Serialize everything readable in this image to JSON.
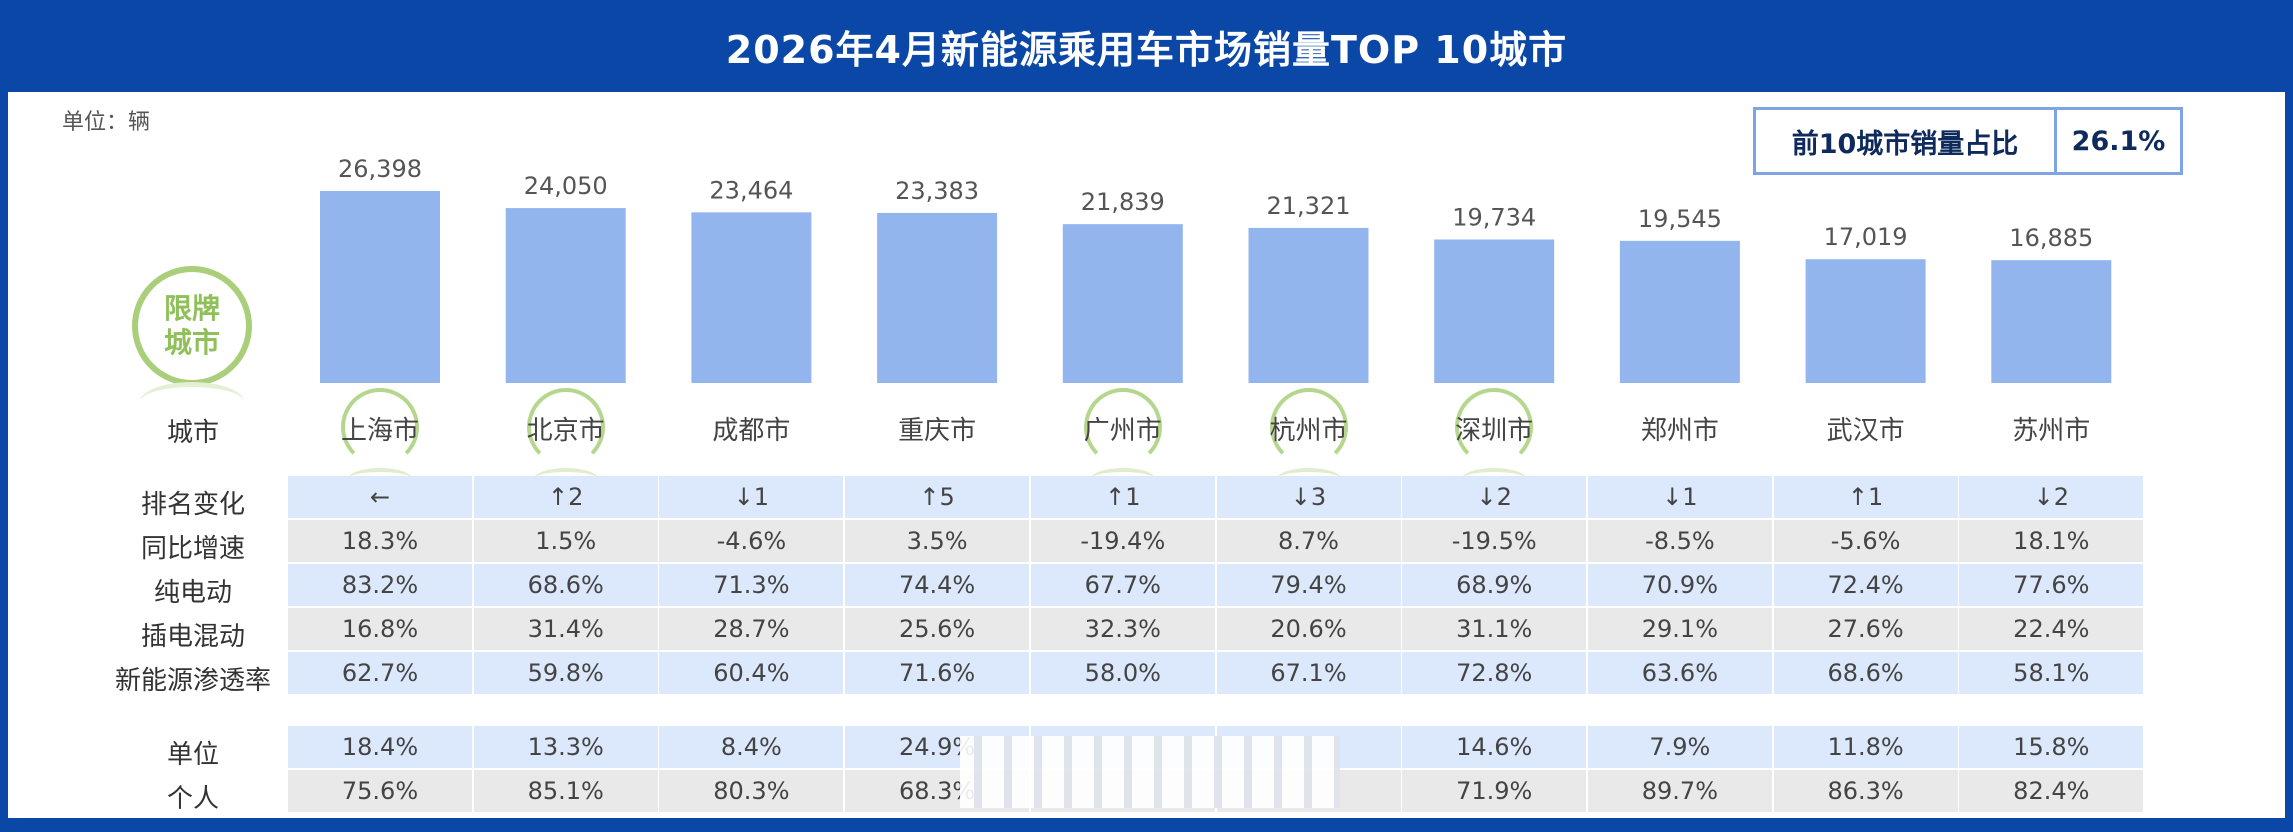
{
  "title": "2026年4月新能源乘用车市场销量TOP 10城市",
  "unit_label": "单位：辆",
  "top10_share": {
    "label": "前10城市销量占比",
    "value": "26.1%"
  },
  "badge": {
    "line1": "限牌",
    "line2": "城市"
  },
  "row_labels": {
    "city": "城市",
    "rank_change": "排名变化",
    "yoy": "同比增速",
    "bev": "纯电动",
    "phev": "插电混动",
    "penetration": "新能源渗透率",
    "unit": "单位",
    "personal": "个人"
  },
  "colors": {
    "bar": "#93b5ee",
    "header_bg": "#0b47a6",
    "row_light": "#dce8fb",
    "row_gray": "#e9e9e9",
    "badge": "#a9cf7a"
  },
  "chart_data": {
    "type": "bar",
    "title": "2026年4月新能源乘用车市场销量TOP 10城市",
    "ylabel": "单位：辆",
    "categories": [
      "上海市",
      "北京市",
      "成都市",
      "重庆市",
      "广州市",
      "杭州市",
      "深圳市",
      "郑州市",
      "武汉市",
      "苏州市"
    ],
    "values": [
      26398,
      24050,
      23464,
      23383,
      21839,
      21321,
      19734,
      19545,
      17019,
      16885
    ],
    "value_labels": [
      "26,398",
      "24,050",
      "23,464",
      "23,383",
      "21,839",
      "21,321",
      "19,734",
      "19,545",
      "17,019",
      "16,885"
    ],
    "restricted_plate_cities": [
      "上海市",
      "北京市",
      "广州市",
      "杭州市",
      "深圳市"
    ]
  },
  "table": {
    "rank_change": [
      "←",
      "↑2",
      "↓1",
      "↑5",
      "↑1",
      "↓3",
      "↓2",
      "↓1",
      "↑1",
      "↓2"
    ],
    "yoy": [
      "18.3%",
      "1.5%",
      "-4.6%",
      "3.5%",
      "-19.4%",
      "8.7%",
      "-19.5%",
      "-8.5%",
      "-5.6%",
      "18.1%"
    ],
    "bev": [
      "83.2%",
      "68.6%",
      "71.3%",
      "74.4%",
      "67.7%",
      "79.4%",
      "68.9%",
      "70.9%",
      "72.4%",
      "77.6%"
    ],
    "phev": [
      "16.8%",
      "31.4%",
      "28.7%",
      "25.6%",
      "32.3%",
      "20.6%",
      "31.1%",
      "29.1%",
      "27.6%",
      "22.4%"
    ],
    "penetration": [
      "62.7%",
      "59.8%",
      "60.4%",
      "71.6%",
      "58.0%",
      "67.1%",
      "72.8%",
      "63.6%",
      "68.6%",
      "58.1%"
    ],
    "unit": [
      "18.4%",
      "13.3%",
      "8.4%",
      "24.9%",
      "",
      "",
      "14.6%",
      "7.9%",
      "11.8%",
      "15.8%"
    ],
    "personal": [
      "75.6%",
      "85.1%",
      "80.3%",
      "68.3%",
      "",
      "",
      "71.9%",
      "89.7%",
      "86.3%",
      "82.4%"
    ]
  }
}
